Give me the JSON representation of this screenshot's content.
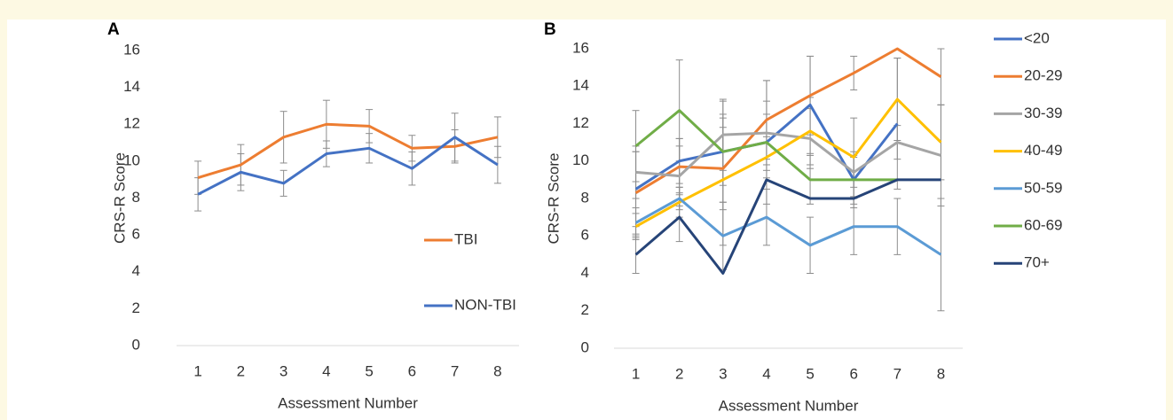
{
  "chart_data": [
    {
      "type": "line",
      "panel_label": "A",
      "x_label": "Assessment Number",
      "y_label": "CRS-R Score",
      "categories": [
        "1",
        "2",
        "3",
        "4",
        "5",
        "6",
        "7",
        "8"
      ],
      "ylim": [
        0,
        16
      ],
      "yticks": [
        0,
        2,
        4,
        6,
        8,
        10,
        12,
        14,
        16
      ],
      "legend": "inside",
      "series": [
        {
          "name": "TBI",
          "color": "#ed7d31",
          "values": [
            9.1,
            9.8,
            11.3,
            12.0,
            11.9,
            10.7,
            10.8,
            11.3
          ],
          "errors": [
            0.9,
            1.1,
            1.4,
            1.3,
            0.9,
            0.7,
            0.9,
            1.1
          ]
        },
        {
          "name": "NON-TBI",
          "color": "#4472c4",
          "values": [
            8.2,
            9.4,
            8.8,
            10.4,
            10.7,
            9.6,
            11.3,
            9.8
          ],
          "errors": [
            0.9,
            1.0,
            0.7,
            0.7,
            0.8,
            0.9,
            1.3,
            1.0
          ]
        }
      ]
    },
    {
      "type": "line",
      "panel_label": "B",
      "x_label": "Assessment Number",
      "y_label": "CRS-R Score",
      "categories": [
        "1",
        "2",
        "3",
        "4",
        "5",
        "6",
        "7",
        "8"
      ],
      "ylim": [
        0,
        16
      ],
      "yticks": [
        0,
        2,
        4,
        6,
        8,
        10,
        12,
        14,
        16
      ],
      "legend": "right",
      "series": [
        {
          "name": "<20",
          "color": "#4472c4",
          "values": [
            8.5,
            10,
            10.5,
            11,
            13,
            9,
            12,
            null
          ],
          "errors": [
            2.0,
            1.2,
            1.8,
            1.5,
            2.6,
            1.5,
            3.5,
            null
          ]
        },
        {
          "name": "20-29",
          "color": "#ed7d31",
          "values": [
            8.3,
            9.7,
            9.6,
            12.2,
            13.5,
            14.7,
            16,
            14.5
          ],
          "errors": [
            2.2,
            1.5,
            2.2,
            2.1,
            2.1,
            0.9,
            null,
            1.5
          ]
        },
        {
          "name": "30-39",
          "color": "#a5a5a5",
          "values": [
            9.4,
            9.2,
            11.4,
            11.5,
            11.2,
            9.4,
            11,
            10.3
          ],
          "errors": [
            1.4,
            1.6,
            1.9,
            1.7,
            1.6,
            0.8,
            0.9,
            2.7
          ]
        },
        {
          "name": "40-49",
          "color": "#ffc000",
          "values": [
            6.5,
            7.8,
            9,
            10.2,
            11.6,
            10.2,
            13.3,
            11
          ],
          "errors": [
            0.7,
            0.8,
            3.5,
            1.1,
            1.8,
            2.1,
            2.2,
            2.0
          ]
        },
        {
          "name": "50-59",
          "color": "#5b9bd5",
          "values": [
            6.7,
            8,
            6,
            7,
            5.5,
            6.5,
            6.5,
            5
          ],
          "errors": [
            0.8,
            0.6,
            1.8,
            1.5,
            1.5,
            1.5,
            1.5,
            3.0
          ]
        },
        {
          "name": "60-69",
          "color": "#70ad47",
          "values": [
            10.8,
            12.7,
            10.5,
            11,
            9,
            9,
            9,
            null
          ],
          "errors": [
            1.9,
            2.7,
            2.7,
            3.3,
            1.3,
            1.3,
            null,
            null
          ]
        },
        {
          "name": "70+",
          "color": "#264478",
          "values": [
            5,
            7,
            4,
            9,
            8,
            8,
            9,
            9
          ],
          "errors": [
            1.0,
            1.3,
            null,
            null,
            null,
            null,
            null,
            null
          ]
        }
      ]
    }
  ]
}
